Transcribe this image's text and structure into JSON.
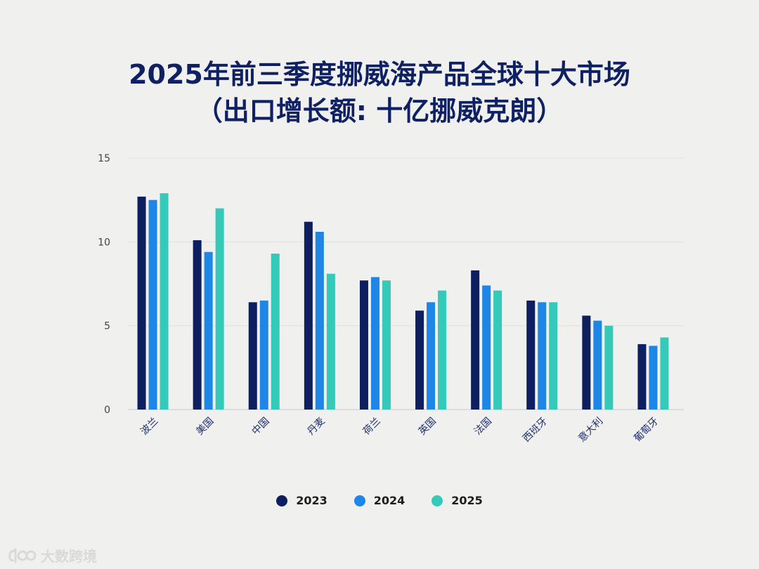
{
  "title": {
    "line1": "2025年前三季度挪威海产品全球十大市场",
    "line2": "（出口增长额: 十亿挪威克朗）"
  },
  "chart_data": {
    "type": "bar",
    "title": "2025年前三季度挪威海产品全球十大市场（出口增长额: 十亿挪威克朗）",
    "xlabel": "",
    "ylabel": "",
    "ylim": [
      0,
      15
    ],
    "yticks": [
      0,
      5,
      10,
      15
    ],
    "grid": true,
    "legend_position": "bottom",
    "categories": [
      "波兰",
      "美国",
      "中国",
      "丹麦",
      "荷兰",
      "英国",
      "法国",
      "西班牙",
      "意大利",
      "葡萄牙"
    ],
    "series": [
      {
        "name": "2023",
        "color": "#0d1f5f",
        "values": [
          12.7,
          10.1,
          6.4,
          11.2,
          7.7,
          5.9,
          8.3,
          6.5,
          5.6,
          3.9
        ]
      },
      {
        "name": "2024",
        "color": "#1e86e6",
        "values": [
          12.5,
          9.4,
          6.5,
          10.6,
          7.9,
          6.4,
          7.4,
          6.4,
          5.3,
          3.8
        ]
      },
      {
        "name": "2025",
        "color": "#35c9b9",
        "values": [
          12.9,
          12.0,
          9.3,
          8.1,
          7.7,
          7.1,
          7.1,
          6.4,
          5.0,
          4.3
        ]
      }
    ]
  },
  "watermark": {
    "text": "大数跨境",
    "icon": "logo-icon"
  }
}
